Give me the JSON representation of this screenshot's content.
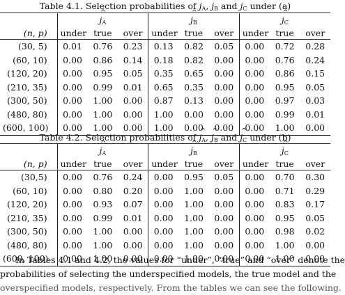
{
  "table1": {
    "caption_pre": "Table 4.1. Selection probabilities of",
    "caption_and": "and",
    "caption_post": "under (a)",
    "row_header": "(n, p)",
    "groups": [
      {
        "sub": "A"
      },
      {
        "sub": "B"
      },
      {
        "sub": "C"
      }
    ],
    "columns": [
      "under",
      "true",
      "over"
    ],
    "rows": [
      {
        "np": "(30, 5)",
        "vals": [
          "0.01",
          "0.76",
          "0.23",
          "0.13",
          "0.82",
          "0.05",
          "0.00",
          "0.72",
          "0.28"
        ]
      },
      {
        "np": "(60, 10)",
        "vals": [
          "0.00",
          "0.86",
          "0.14",
          "0.18",
          "0.82",
          "0.00",
          "0.00",
          "0.76",
          "0.24"
        ]
      },
      {
        "np": "(120, 20)",
        "vals": [
          "0.00",
          "0.95",
          "0.05",
          "0.35",
          "0.65",
          "0.00",
          "0.00",
          "0.86",
          "0.15"
        ]
      },
      {
        "np": "(210, 35)",
        "vals": [
          "0.00",
          "0.99",
          "0.01",
          "0.65",
          "0.35",
          "0.00",
          "0.00",
          "0.95",
          "0.05"
        ]
      },
      {
        "np": "(300, 50)",
        "vals": [
          "0.00",
          "1.00",
          "0.00",
          "0.87",
          "0.13",
          "0.00",
          "0.00",
          "0.97",
          "0.03"
        ]
      },
      {
        "np": "(480, 80)",
        "vals": [
          "0.00",
          "1.00",
          "0.00",
          "1.00",
          "0.00",
          "0.00",
          "0.00",
          "0.99",
          "0.01"
        ]
      },
      {
        "np": "(600, 100)",
        "vals": [
          "0.00",
          "1.00",
          "0.00",
          "1.00",
          "0.00",
          "0.00",
          "0.00",
          "1.00",
          "0.00"
        ]
      }
    ]
  },
  "table2": {
    "caption_pre": "Table 4.2. Selection probabilities of",
    "caption_and": "and",
    "caption_post": "under (b)",
    "row_header": "(n, p)",
    "groups": [
      {
        "sub": "A"
      },
      {
        "sub": "B"
      },
      {
        "sub": "C"
      }
    ],
    "columns": [
      "under",
      "true",
      "over"
    ],
    "rows": [
      {
        "np": "(30,5)",
        "vals": [
          "0.00",
          "0.76",
          "0.24",
          "0.00",
          "0.95",
          "0.05",
          "0.00",
          "0.70",
          "0.30"
        ]
      },
      {
        "np": "(60, 10)",
        "vals": [
          "0.00",
          "0.80",
          "0.20",
          "0.00",
          "1.00",
          "0.00",
          "0.00",
          "0.71",
          "0.29"
        ]
      },
      {
        "np": "(120, 20)",
        "vals": [
          "0.00",
          "0.93",
          "0.07",
          "0.00",
          "1.00",
          "0.00",
          "0.00",
          "0.83",
          "0.17"
        ]
      },
      {
        "np": "(210, 35)",
        "vals": [
          "0.00",
          "0.99",
          "0.01",
          "0.00",
          "1.00",
          "0.00",
          "0.00",
          "0.95",
          "0.05"
        ]
      },
      {
        "np": "(300, 50)",
        "vals": [
          "0.00",
          "1.00",
          "0.00",
          "0.00",
          "1.00",
          "0.00",
          "0.00",
          "0.98",
          "0.02"
        ]
      },
      {
        "np": "(480, 80)",
        "vals": [
          "0.00",
          "1.00",
          "0.00",
          "0.00",
          "1.00",
          "0.00",
          "0.00",
          "1.00",
          "0.00"
        ]
      },
      {
        "np": "(600, 100)",
        "vals": [
          "0.00",
          "1.00",
          "0.00",
          "0.00",
          "1.00",
          "0.00",
          "0.00",
          "1.00",
          "0.00"
        ]
      }
    ]
  },
  "paragraph": {
    "lines": [
      "In Tables 4.1 and 4.2, the values for “under”, “true” and “over” denote the",
      "probabilities of selecting the underspecified models, the true model and the",
      "overspecified models, respectively. From the tables we can see the following."
    ]
  }
}
